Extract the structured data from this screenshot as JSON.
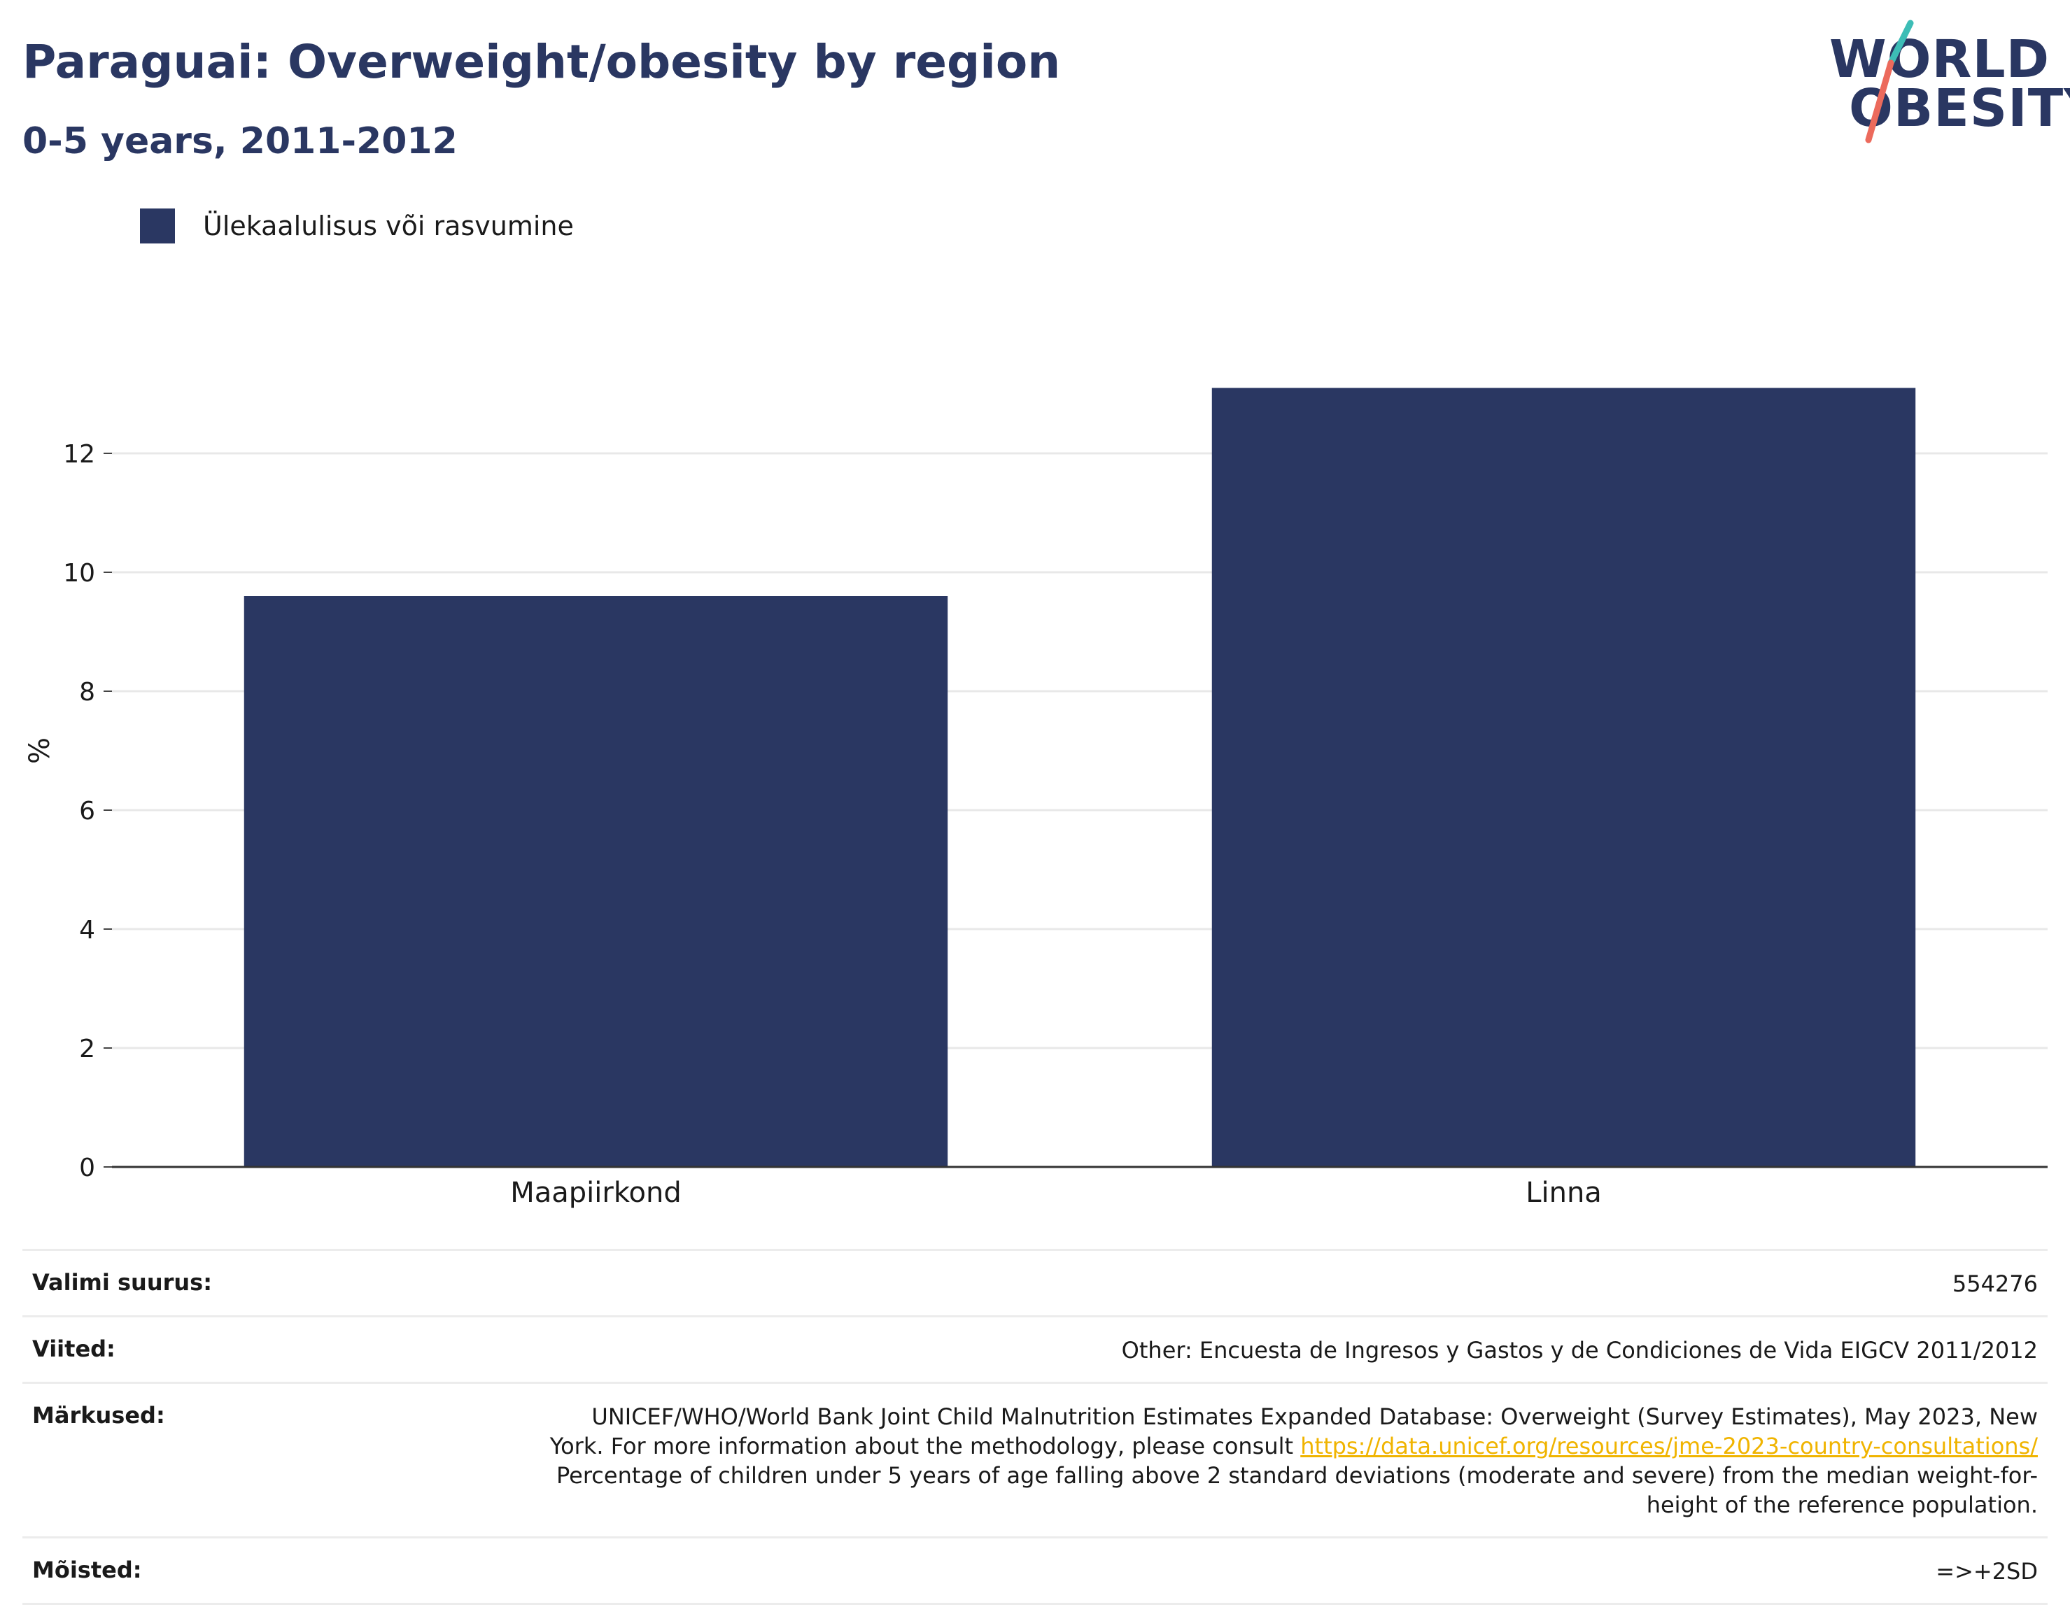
{
  "header": {
    "title": "Paraguai: Overweight/obesity by region",
    "subtitle": "0-5 years, 2011-2012"
  },
  "logo": {
    "line1": "WORLD",
    "line2": "OBESITY"
  },
  "colors": {
    "bar": "#2a3762",
    "title": "#2a3762",
    "logo_accent_teal": "#3dbdb6",
    "logo_accent_coral": "#ec6a5c",
    "link": "#f0b400"
  },
  "chart_data": {
    "type": "bar",
    "categories": [
      "Maapiirkond",
      "Linna"
    ],
    "series": [
      {
        "name": "Ülekaalulisus või rasvumine",
        "values": [
          9.6,
          13.1
        ]
      }
    ],
    "ylabel": "%",
    "ylim": [
      0,
      14
    ],
    "yticks": [
      0,
      2,
      4,
      6,
      8,
      10,
      12
    ],
    "grid": true,
    "legend": "top-left"
  },
  "info": [
    {
      "label": "Valimi suurus:",
      "value": "554276"
    },
    {
      "label": "Viited:",
      "value": "Other: Encuesta de Ingresos y Gastos y de Condiciones de Vida EIGCV 2011/2012"
    },
    {
      "label": "Märkused:",
      "value_line1": "UNICEF/WHO/World Bank Joint Child Malnutrition Estimates Expanded Database: Overweight (Survey Estimates), May 2023, New",
      "value_line2": "York. For more information about the methodology, please consult ",
      "link": "https://data.unicef.org/resources/jme-2023-country-consultations/",
      "value_line3": "Percentage of children under 5 years of age falling above 2 standard deviations (moderate and severe) from the median weight-for-",
      "value_line4": "height of the reference population."
    },
    {
      "label": "Mõisted:",
      "value": "=>+2SD"
    }
  ]
}
